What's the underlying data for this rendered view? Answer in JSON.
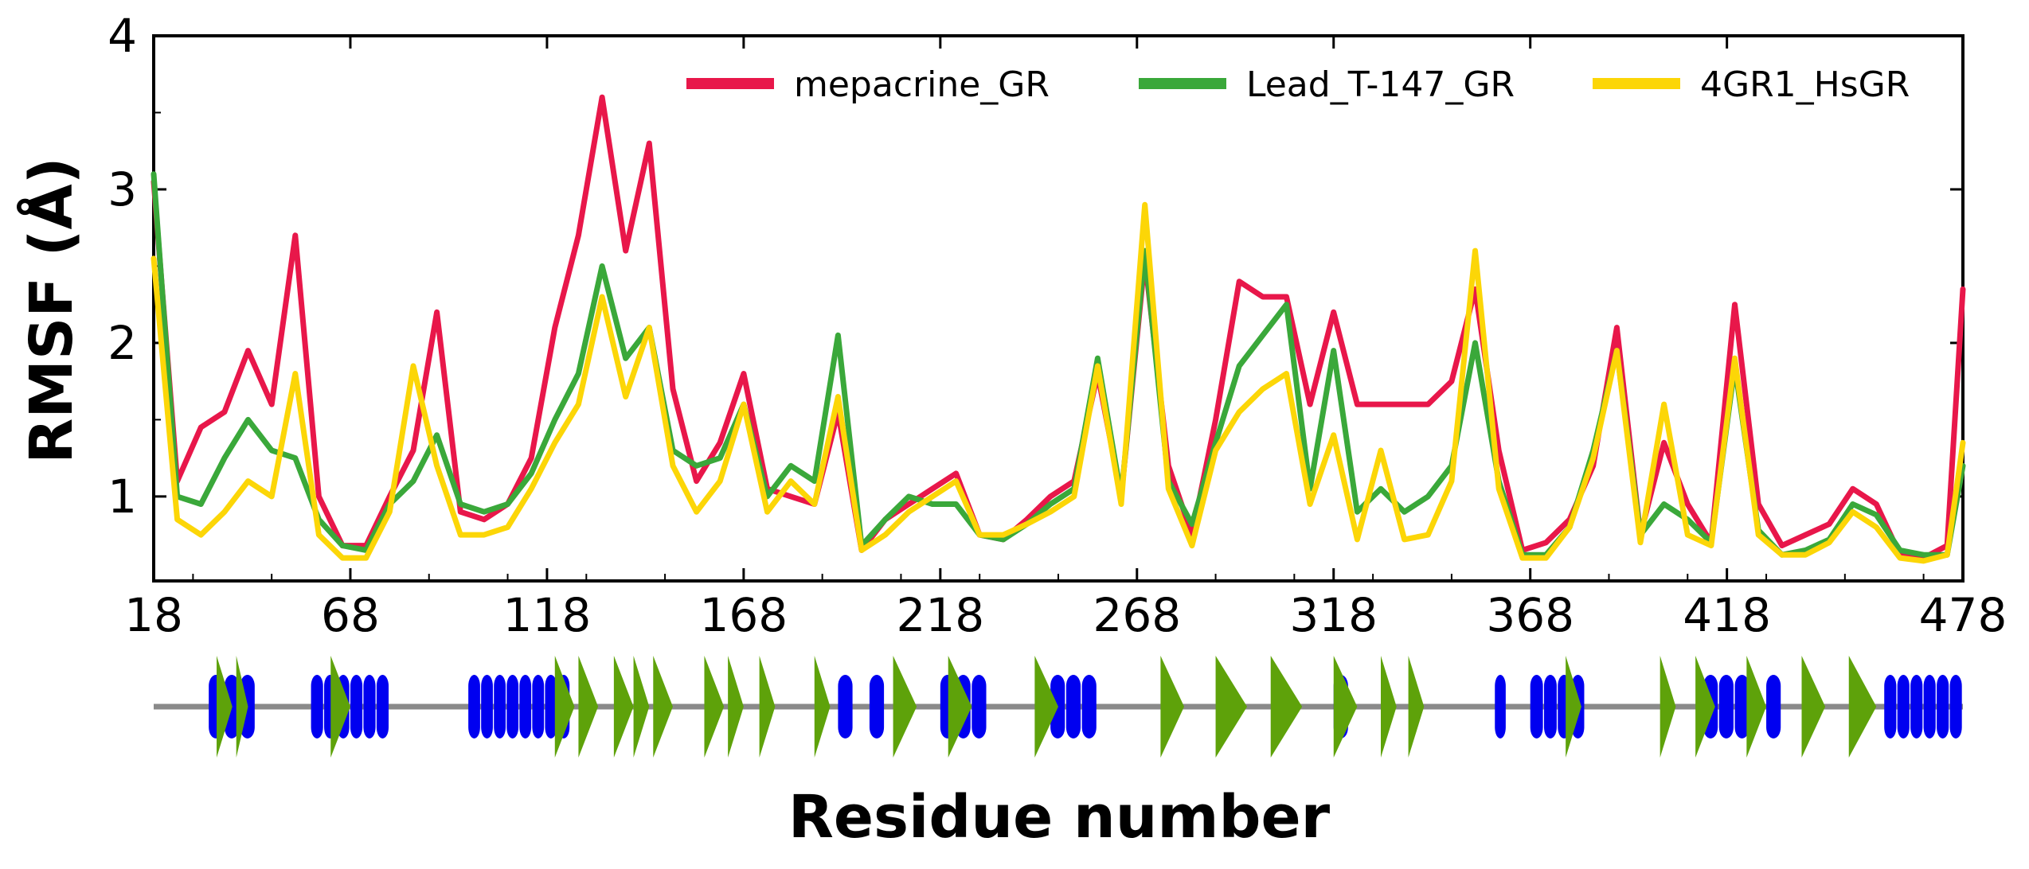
{
  "chart_data": {
    "type": "line",
    "title": "",
    "xlabel": "Residue number",
    "ylabel": "RMSF (Å)",
    "xlim": [
      18,
      478
    ],
    "ylim": [
      0.45,
      4
    ],
    "xticks": [
      18,
      68,
      118,
      168,
      218,
      268,
      318,
      368,
      418,
      478
    ],
    "yticks": [
      1,
      2,
      3,
      4
    ],
    "grid": false,
    "legend_position": "top",
    "x": [
      18,
      24,
      30,
      36,
      42,
      48,
      54,
      60,
      66,
      72,
      78,
      84,
      90,
      96,
      102,
      108,
      114,
      120,
      126,
      132,
      138,
      144,
      150,
      156,
      162,
      168,
      174,
      180,
      186,
      192,
      198,
      204,
      210,
      216,
      222,
      228,
      234,
      240,
      246,
      252,
      258,
      264,
      270,
      276,
      282,
      288,
      294,
      300,
      306,
      312,
      318,
      324,
      330,
      336,
      342,
      348,
      354,
      360,
      366,
      372,
      378,
      384,
      390,
      396,
      402,
      408,
      414,
      420,
      426,
      432,
      438,
      444,
      450,
      456,
      462,
      468,
      474,
      478
    ],
    "series": [
      {
        "name": "mepacrine_GR",
        "color": "#e8174a",
        "values": [
          3.05,
          1.1,
          1.45,
          1.55,
          1.95,
          1.6,
          2.7,
          1.0,
          0.68,
          0.68,
          1.0,
          1.3,
          2.2,
          0.9,
          0.85,
          0.95,
          1.25,
          2.1,
          2.7,
          3.6,
          2.6,
          3.3,
          1.7,
          1.1,
          1.35,
          1.8,
          1.05,
          1.0,
          0.95,
          1.55,
          0.65,
          0.85,
          0.95,
          1.05,
          1.15,
          0.75,
          0.72,
          0.85,
          1.0,
          1.1,
          1.8,
          1.0,
          2.55,
          1.2,
          0.75,
          1.5,
          2.4,
          2.3,
          2.3,
          1.6,
          2.2,
          1.6,
          1.6,
          1.6,
          1.6,
          1.75,
          2.35,
          1.3,
          0.65,
          0.7,
          0.85,
          1.2,
          2.1,
          0.75,
          1.35,
          0.95,
          0.7,
          2.25,
          0.95,
          0.68,
          0.75,
          0.82,
          1.05,
          0.95,
          0.62,
          0.6,
          0.68,
          2.35
        ]
      },
      {
        "name": "Lead_T-147_GR",
        "color": "#3aa83a",
        "values": [
          3.1,
          1.0,
          0.95,
          1.25,
          1.5,
          1.3,
          1.25,
          0.85,
          0.68,
          0.65,
          0.95,
          1.1,
          1.4,
          0.95,
          0.9,
          0.95,
          1.15,
          1.5,
          1.8,
          2.5,
          1.9,
          2.1,
          1.3,
          1.2,
          1.25,
          1.6,
          1.0,
          1.2,
          1.1,
          2.05,
          0.68,
          0.85,
          1.0,
          0.95,
          0.95,
          0.75,
          0.72,
          0.82,
          0.95,
          1.05,
          1.9,
          1.0,
          2.6,
          1.1,
          0.82,
          1.35,
          1.85,
          2.05,
          2.25,
          1.05,
          1.95,
          0.9,
          1.05,
          0.9,
          1.0,
          1.2,
          2.0,
          1.1,
          0.62,
          0.62,
          0.8,
          1.3,
          1.95,
          0.75,
          0.95,
          0.85,
          0.7,
          1.85,
          0.78,
          0.62,
          0.65,
          0.72,
          0.95,
          0.88,
          0.65,
          0.62,
          0.62,
          1.2
        ]
      },
      {
        "name": "4GR1_HsGR",
        "color": "#fcd607",
        "values": [
          2.55,
          0.85,
          0.75,
          0.9,
          1.1,
          1.0,
          1.8,
          0.75,
          0.6,
          0.6,
          0.9,
          1.85,
          1.2,
          0.75,
          0.75,
          0.8,
          1.05,
          1.35,
          1.6,
          2.3,
          1.65,
          2.1,
          1.2,
          0.9,
          1.1,
          1.6,
          0.9,
          1.1,
          0.95,
          1.65,
          0.65,
          0.75,
          0.9,
          1.0,
          1.1,
          0.75,
          0.75,
          0.82,
          0.9,
          1.0,
          1.85,
          0.95,
          2.9,
          1.05,
          0.68,
          1.3,
          1.55,
          1.7,
          1.8,
          0.95,
          1.4,
          0.72,
          1.3,
          0.72,
          0.75,
          1.1,
          2.6,
          1.05,
          0.6,
          0.6,
          0.8,
          1.25,
          1.95,
          0.7,
          1.6,
          0.75,
          0.68,
          1.9,
          0.75,
          0.62,
          0.62,
          0.7,
          0.9,
          0.8,
          0.6,
          0.58,
          0.62,
          1.35
        ]
      }
    ],
    "secondary_structure": {
      "helices": [
        [
          32,
          44
        ],
        [
          58,
          78
        ],
        [
          98,
          124
        ],
        [
          192,
          196
        ],
        [
          200,
          204
        ],
        [
          218,
          230
        ],
        [
          246,
          258
        ],
        [
          318,
          322
        ],
        [
          359,
          362
        ],
        [
          368,
          382
        ],
        [
          412,
          424
        ],
        [
          428,
          432
        ],
        [
          458,
          478
        ]
      ],
      "strands": [
        [
          34,
          38
        ],
        [
          39,
          42
        ],
        [
          63,
          68
        ],
        [
          120,
          125
        ],
        [
          126,
          131
        ],
        [
          135,
          140
        ],
        [
          140,
          144
        ],
        [
          145,
          150
        ],
        [
          158,
          163
        ],
        [
          164,
          168
        ],
        [
          172,
          176
        ],
        [
          186,
          190
        ],
        [
          206,
          212
        ],
        [
          220,
          226
        ],
        [
          242,
          248
        ],
        [
          274,
          280
        ],
        [
          288,
          296
        ],
        [
          302,
          310
        ],
        [
          318,
          324
        ],
        [
          330,
          334
        ],
        [
          337,
          341
        ],
        [
          377,
          381
        ],
        [
          401,
          405
        ],
        [
          410,
          415
        ],
        [
          423,
          428
        ],
        [
          437,
          443
        ],
        [
          449,
          456
        ]
      ]
    }
  }
}
